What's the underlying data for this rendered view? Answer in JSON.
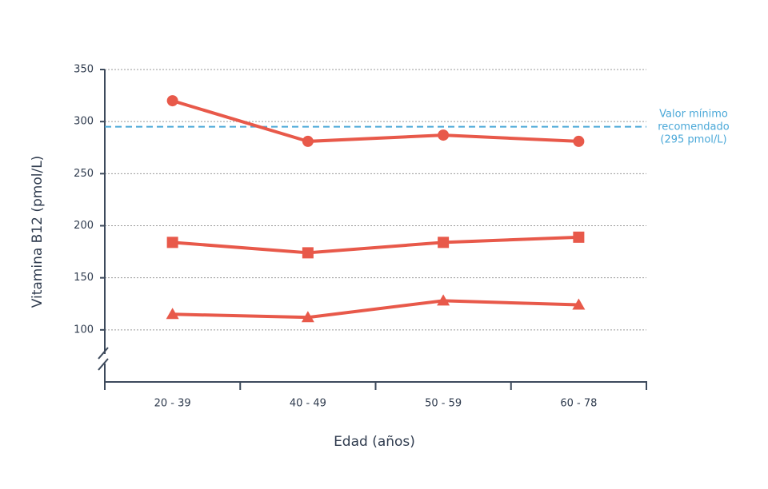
{
  "chart_data": {
    "type": "line",
    "categories": [
      "20 - 39",
      "40 - 49",
      "50 - 59",
      "60 - 78"
    ],
    "series": [
      {
        "color": "#e8594a",
        "marker": "circle",
        "values": [
          320,
          281,
          287,
          281
        ]
      },
      {
        "color": "#e8594a",
        "marker": "square",
        "values": [
          184,
          174,
          184,
          189
        ]
      },
      {
        "color": "#e8594a",
        "marker": "triangle",
        "values": [
          115,
          112,
          128,
          124
        ]
      }
    ],
    "ylim": [
      50,
      350
    ],
    "yticks": [
      100,
      150,
      200,
      250,
      300,
      350
    ],
    "grid": true,
    "axis_break": true,
    "xlabel": "Edad (años)",
    "ylabel": "Vitamina B12 (pmol/L)",
    "reference_line": {
      "value": 295,
      "color": "#4aa8d8",
      "label": [
        "Valor mínimo",
        "recomendado",
        "(295 pmol/L)"
      ]
    }
  }
}
